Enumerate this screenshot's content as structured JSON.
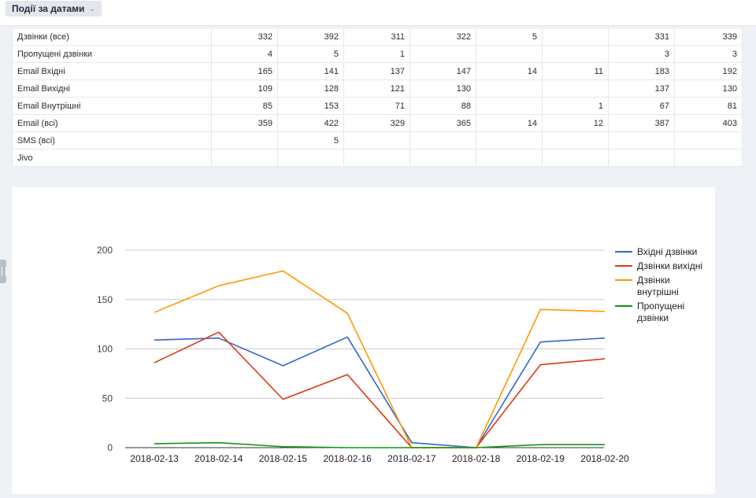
{
  "filter": {
    "label": "Події за датами",
    "icon": "chevron-down-icon"
  },
  "table": {
    "rows": [
      {
        "label": "Дзвінки (все)",
        "cells": [
          "332",
          "392",
          "311",
          "322",
          "5",
          "",
          "331",
          "339"
        ]
      },
      {
        "label": "Пропущені дзвінки",
        "cells": [
          "4",
          "5",
          "1",
          "",
          "",
          "",
          "3",
          "3"
        ]
      },
      {
        "label": "Email Вхідні",
        "cells": [
          "165",
          "141",
          "137",
          "147",
          "14",
          "11",
          "183",
          "192"
        ]
      },
      {
        "label": "Email Вихідні",
        "cells": [
          "109",
          "128",
          "121",
          "130",
          "",
          "",
          "137",
          "130"
        ]
      },
      {
        "label": "Email Внутрішні",
        "cells": [
          "85",
          "153",
          "71",
          "88",
          "",
          "1",
          "67",
          "81"
        ]
      },
      {
        "label": "Email (всі)",
        "cells": [
          "359",
          "422",
          "329",
          "365",
          "14",
          "12",
          "387",
          "403"
        ]
      },
      {
        "label": "SMS (всі)",
        "cells": [
          "",
          "5",
          "",
          "",
          "",
          "",
          "",
          ""
        ]
      },
      {
        "label": "Jivo",
        "cells": [
          "",
          "",
          "",
          "",
          "",
          "",
          "",
          ""
        ]
      }
    ]
  },
  "chart_data": {
    "type": "line",
    "categories": [
      "2018-02-13",
      "2018-02-14",
      "2018-02-15",
      "2018-02-16",
      "2018-02-17",
      "2018-02-18",
      "2018-02-19",
      "2018-02-20"
    ],
    "series": [
      {
        "name": "Вхідні дзвінки",
        "name_lines": [
          "Вхідні дзвінки"
        ],
        "color": "#3366cc",
        "values": [
          109,
          111,
          83,
          112,
          5,
          0,
          107,
          111
        ]
      },
      {
        "name": "Дзвінки вихідні",
        "name_lines": [
          "Дзвінки вихідні"
        ],
        "color": "#dc3912",
        "values": [
          86,
          117,
          49,
          74,
          0,
          0,
          84,
          90
        ]
      },
      {
        "name": "Дзвінки внутрішні",
        "name_lines": [
          "Дзвінки",
          "внутрішні"
        ],
        "color": "#ff9900",
        "values": [
          137,
          164,
          179,
          136,
          0,
          0,
          140,
          138
        ]
      },
      {
        "name": "Пропущені дзвінки",
        "name_lines": [
          "Пропущені",
          "дзвінки"
        ],
        "color": "#109618",
        "values": [
          4,
          5,
          1,
          0,
          0,
          0,
          3,
          3
        ]
      }
    ],
    "yticks": [
      0,
      50,
      100,
      150,
      200
    ],
    "ylim": [
      0,
      200
    ],
    "grid": true,
    "legend": "right",
    "title": "",
    "xlabel": "",
    "ylabel": ""
  }
}
